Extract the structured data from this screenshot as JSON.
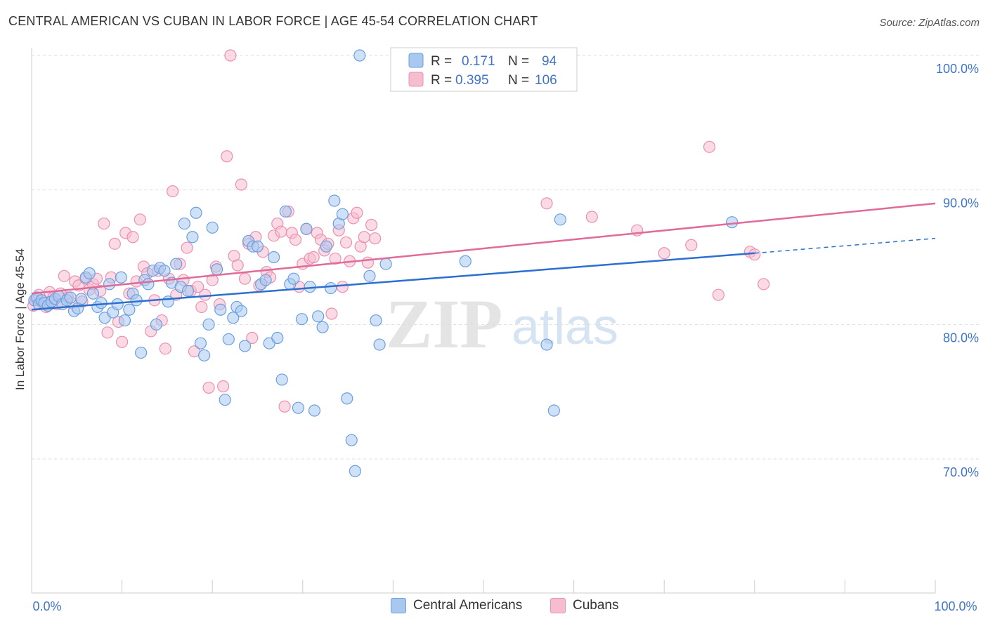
{
  "title": "CENTRAL AMERICAN VS CUBAN IN LABOR FORCE | AGE 45-54 CORRELATION CHART",
  "source": "Source: ZipAtlas.com",
  "watermark": {
    "zip": "ZIP",
    "atlas": "atlas"
  },
  "colors": {
    "blue_fill": "#a8c8ef",
    "blue_stroke": "#6b9ee0",
    "blue_line": "#2b6fd0",
    "pink_fill": "#f6bcd0",
    "pink_stroke": "#ec8fb0",
    "pink_line": "#e06a98",
    "axis_text": "#3f74c6",
    "grid": "#dddddd"
  },
  "legend_top": {
    "rows": [
      {
        "r_label": "R =",
        "r_value": "0.171",
        "n_label": "N =",
        "n_value": "94"
      },
      {
        "r_label": "R =",
        "r_value": "0.395",
        "n_label": "N =",
        "n_value": "106"
      }
    ]
  },
  "legend_bottom": [
    "Central Americans",
    "Cubans"
  ],
  "chart_data": {
    "type": "scatter",
    "xlabel": "",
    "ylabel": "In Labor Force | Age 45-54",
    "xlim": [
      0,
      100
    ],
    "ylim": [
      60,
      102
    ],
    "x_tick_labels": {
      "min": "0.0%",
      "max": "100.0%"
    },
    "y_ticks": [
      70,
      80,
      90,
      100
    ],
    "y_tick_labels": [
      "70.0%",
      "80.0%",
      "90.0%",
      "100.0%"
    ],
    "grid": true,
    "series": [
      {
        "name": "Central Americans",
        "r": 0.171,
        "n": 94,
        "trend": {
          "x0": 0,
          "y0": 81.1,
          "x1": 80,
          "y1": 85.3,
          "dashed_to_x": 100,
          "dashed_to_y": 86.4
        },
        "points": [
          [
            0.3,
            81.8
          ],
          [
            0.6,
            82.0
          ],
          [
            0.8,
            81.5
          ],
          [
            1.1,
            81.8
          ],
          [
            1.4,
            81.6
          ],
          [
            1.8,
            81.4
          ],
          [
            2.2,
            81.7
          ],
          [
            2.6,
            81.9
          ],
          [
            3.0,
            82.1
          ],
          [
            3.4,
            81.5
          ],
          [
            3.9,
            81.8
          ],
          [
            4.3,
            82.0
          ],
          [
            4.7,
            81.0
          ],
          [
            5.1,
            81.2
          ],
          [
            5.5,
            81.9
          ],
          [
            6.0,
            83.5
          ],
          [
            6.4,
            83.8
          ],
          [
            6.8,
            82.3
          ],
          [
            7.3,
            81.3
          ],
          [
            7.7,
            81.6
          ],
          [
            8.1,
            80.5
          ],
          [
            8.6,
            83.0
          ],
          [
            9.0,
            80.9
          ],
          [
            9.5,
            81.5
          ],
          [
            9.9,
            83.5
          ],
          [
            10.3,
            80.3
          ],
          [
            10.8,
            81.1
          ],
          [
            11.2,
            82.3
          ],
          [
            11.6,
            81.8
          ],
          [
            12.1,
            77.9
          ],
          [
            12.5,
            83.3
          ],
          [
            12.9,
            83.0
          ],
          [
            13.4,
            84.0
          ],
          [
            13.8,
            80.0
          ],
          [
            14.2,
            84.2
          ],
          [
            14.7,
            84.0
          ],
          [
            15.1,
            81.7
          ],
          [
            15.5,
            83.1
          ],
          [
            16.0,
            84.5
          ],
          [
            16.5,
            82.8
          ],
          [
            16.9,
            87.5
          ],
          [
            17.3,
            82.5
          ],
          [
            17.8,
            86.5
          ],
          [
            18.2,
            88.3
          ],
          [
            18.7,
            78.6
          ],
          [
            19.1,
            77.7
          ],
          [
            19.6,
            80.0
          ],
          [
            20.0,
            87.2
          ],
          [
            20.5,
            84.1
          ],
          [
            20.9,
            81.1
          ],
          [
            21.4,
            74.4
          ],
          [
            21.8,
            78.9
          ],
          [
            22.3,
            80.5
          ],
          [
            22.7,
            81.3
          ],
          [
            23.2,
            81.0
          ],
          [
            23.6,
            78.4
          ],
          [
            24.0,
            86.2
          ],
          [
            24.5,
            85.8
          ],
          [
            25.0,
            85.8
          ],
          [
            25.4,
            83.0
          ],
          [
            25.9,
            83.3
          ],
          [
            26.3,
            78.6
          ],
          [
            26.8,
            85.0
          ],
          [
            27.2,
            79.0
          ],
          [
            27.7,
            75.9
          ],
          [
            28.1,
            88.4
          ],
          [
            28.6,
            83.0
          ],
          [
            29.0,
            83.4
          ],
          [
            29.5,
            73.8
          ],
          [
            29.9,
            80.4
          ],
          [
            30.4,
            87.1
          ],
          [
            30.8,
            82.8
          ],
          [
            31.3,
            73.6
          ],
          [
            31.7,
            80.6
          ],
          [
            32.2,
            79.8
          ],
          [
            32.6,
            85.8
          ],
          [
            33.1,
            82.7
          ],
          [
            33.5,
            89.2
          ],
          [
            34.0,
            87.5
          ],
          [
            34.4,
            88.2
          ],
          [
            34.9,
            74.5
          ],
          [
            35.4,
            71.4
          ],
          [
            35.8,
            69.1
          ],
          [
            36.3,
            100.0
          ],
          [
            37.4,
            83.6
          ],
          [
            38.1,
            80.3
          ],
          [
            38.5,
            78.5
          ],
          [
            48.0,
            84.7
          ],
          [
            55.0,
            100.0
          ],
          [
            57.0,
            78.5
          ],
          [
            57.8,
            73.6
          ],
          [
            58.5,
            87.8
          ],
          [
            77.5,
            87.6
          ],
          [
            39.2,
            84.5
          ]
        ]
      },
      {
        "name": "Cubans",
        "r": 0.395,
        "n": 106,
        "trend": {
          "x0": 0,
          "y0": 82.3,
          "x1": 100,
          "y1": 89.0
        },
        "points": [
          [
            0.2,
            81.4
          ],
          [
            0.5,
            81.9
          ],
          [
            0.8,
            82.2
          ],
          [
            1.2,
            81.6
          ],
          [
            1.6,
            81.3
          ],
          [
            2.0,
            82.4
          ],
          [
            2.4,
            82.0
          ],
          [
            2.8,
            81.5
          ],
          [
            3.2,
            82.3
          ],
          [
            3.6,
            83.6
          ],
          [
            4.0,
            82.0
          ],
          [
            4.4,
            81.6
          ],
          [
            4.8,
            83.2
          ],
          [
            5.2,
            82.9
          ],
          [
            5.6,
            81.7
          ],
          [
            6.0,
            83.4
          ],
          [
            6.4,
            82.6
          ],
          [
            6.8,
            83.0
          ],
          [
            7.2,
            83.4
          ],
          [
            7.6,
            82.5
          ],
          [
            8.0,
            87.5
          ],
          [
            8.4,
            79.4
          ],
          [
            8.8,
            83.5
          ],
          [
            9.2,
            86.0
          ],
          [
            9.6,
            80.2
          ],
          [
            10.0,
            78.7
          ],
          [
            10.4,
            86.8
          ],
          [
            10.8,
            82.3
          ],
          [
            11.2,
            86.5
          ],
          [
            11.6,
            83.2
          ],
          [
            12.0,
            87.8
          ],
          [
            12.4,
            84.3
          ],
          [
            12.8,
            83.8
          ],
          [
            13.2,
            79.5
          ],
          [
            13.6,
            81.8
          ],
          [
            14.0,
            84.0
          ],
          [
            14.4,
            80.3
          ],
          [
            14.8,
            78.2
          ],
          [
            15.2,
            83.4
          ],
          [
            15.6,
            89.9
          ],
          [
            16.0,
            82.2
          ],
          [
            16.4,
            84.5
          ],
          [
            16.8,
            83.3
          ],
          [
            17.2,
            85.7
          ],
          [
            17.6,
            82.5
          ],
          [
            18.0,
            78.0
          ],
          [
            18.4,
            82.8
          ],
          [
            18.8,
            81.3
          ],
          [
            19.2,
            82.2
          ],
          [
            19.6,
            75.3
          ],
          [
            20.0,
            83.3
          ],
          [
            20.4,
            84.3
          ],
          [
            20.8,
            81.5
          ],
          [
            21.2,
            75.4
          ],
          [
            21.6,
            92.5
          ],
          [
            22.0,
            100.0
          ],
          [
            22.4,
            85.1
          ],
          [
            22.8,
            84.4
          ],
          [
            23.2,
            90.4
          ],
          [
            23.6,
            83.4
          ],
          [
            24.0,
            86.0
          ],
          [
            24.4,
            79.0
          ],
          [
            24.8,
            86.5
          ],
          [
            25.2,
            82.9
          ],
          [
            25.6,
            85.4
          ],
          [
            26.0,
            83.9
          ],
          [
            26.4,
            83.5
          ],
          [
            26.8,
            86.6
          ],
          [
            27.2,
            87.5
          ],
          [
            27.6,
            86.9
          ],
          [
            28.0,
            73.9
          ],
          [
            28.4,
            88.4
          ],
          [
            28.8,
            86.8
          ],
          [
            29.2,
            86.3
          ],
          [
            29.6,
            82.8
          ],
          [
            30.0,
            84.5
          ],
          [
            30.4,
            87.1
          ],
          [
            30.8,
            84.9
          ],
          [
            31.2,
            85.0
          ],
          [
            31.6,
            86.8
          ],
          [
            32.0,
            86.3
          ],
          [
            32.4,
            85.5
          ],
          [
            32.8,
            86.0
          ],
          [
            33.2,
            80.8
          ],
          [
            33.6,
            84.9
          ],
          [
            34.0,
            87.0
          ],
          [
            34.4,
            82.8
          ],
          [
            34.8,
            86.1
          ],
          [
            35.2,
            84.7
          ],
          [
            35.6,
            87.9
          ],
          [
            36.0,
            88.3
          ],
          [
            36.4,
            85.8
          ],
          [
            36.8,
            86.5
          ],
          [
            37.2,
            84.6
          ],
          [
            37.6,
            87.4
          ],
          [
            38.0,
            86.4
          ],
          [
            57.0,
            89.0
          ],
          [
            62.0,
            88.0
          ],
          [
            67.0,
            87.0
          ],
          [
            70.0,
            85.3
          ],
          [
            73.0,
            85.9
          ],
          [
            75.0,
            93.2
          ],
          [
            76.0,
            82.2
          ],
          [
            79.5,
            85.4
          ],
          [
            80.0,
            85.2
          ],
          [
            81.0,
            83.0
          ]
        ]
      }
    ]
  }
}
